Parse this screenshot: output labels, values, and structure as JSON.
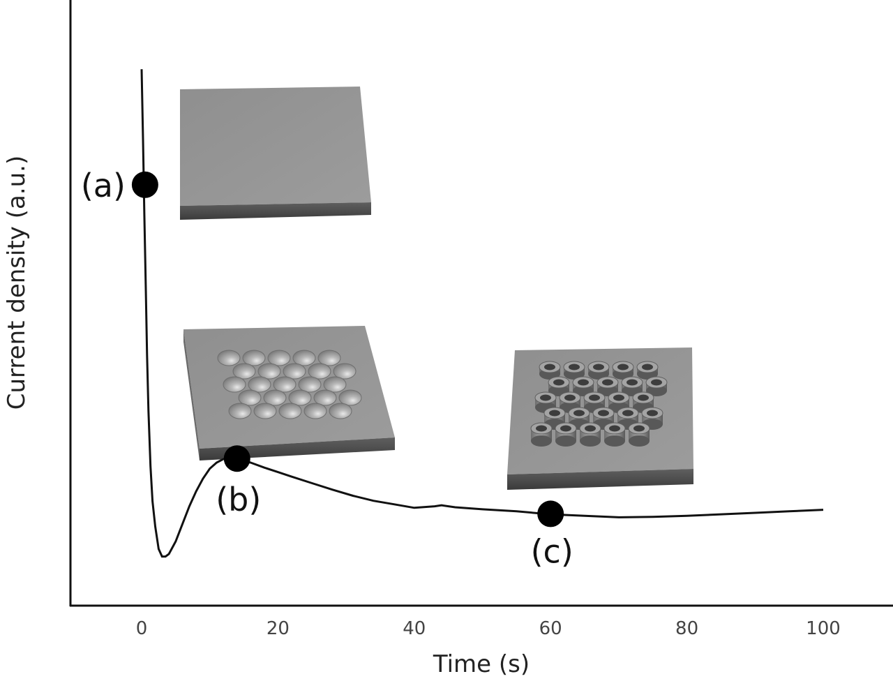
{
  "chart_data": {
    "type": "line",
    "xlabel": "Time (s)",
    "ylabel": "Current density (a.u.)",
    "xlim": [
      -10,
      110
    ],
    "ylim": [
      0,
      1
    ],
    "x_ticks": [
      "0",
      "20",
      "40",
      "60",
      "80",
      "100"
    ],
    "y_ticks": [],
    "grid": false,
    "series": [
      {
        "x": [
          0,
          0.2,
          0.4,
          0.6,
          0.8,
          1.0,
          1.3,
          1.6,
          2.0,
          2.5,
          3.0,
          3.5,
          4.0,
          5.0,
          6.0,
          7.0,
          8.0,
          9.0,
          10.0,
          11.0,
          12.0,
          13.0,
          14.0,
          16.0,
          18.0,
          20.0,
          22.0,
          25.0,
          28.0,
          31.0,
          34.0,
          37.0,
          40.0,
          43.0,
          44.0,
          46.0,
          50.0,
          55.0,
          60.0,
          65.0,
          70.0,
          75.0,
          80.0,
          85.0,
          90.0,
          95.0,
          100.0
        ],
        "y": [
          0.99,
          0.85,
          0.7,
          0.56,
          0.42,
          0.31,
          0.2,
          0.13,
          0.08,
          0.035,
          0.02,
          0.02,
          0.025,
          0.05,
          0.085,
          0.12,
          0.15,
          0.175,
          0.195,
          0.207,
          0.214,
          0.216,
          0.215,
          0.207,
          0.197,
          0.188,
          0.179,
          0.166,
          0.153,
          0.141,
          0.131,
          0.124,
          0.117,
          0.12,
          0.122,
          0.118,
          0.114,
          0.11,
          0.104,
          0.101,
          0.098,
          0.099,
          0.101,
          0.104,
          0.107,
          0.11,
          0.113
        ]
      }
    ],
    "markers": [
      {
        "label": "(a)",
        "x": 0.5,
        "y": 0.76
      },
      {
        "label": "(b)",
        "x": 14.0,
        "y": 0.215
      },
      {
        "label": "(c)",
        "x": 60.0,
        "y": 0.105
      }
    ]
  }
}
